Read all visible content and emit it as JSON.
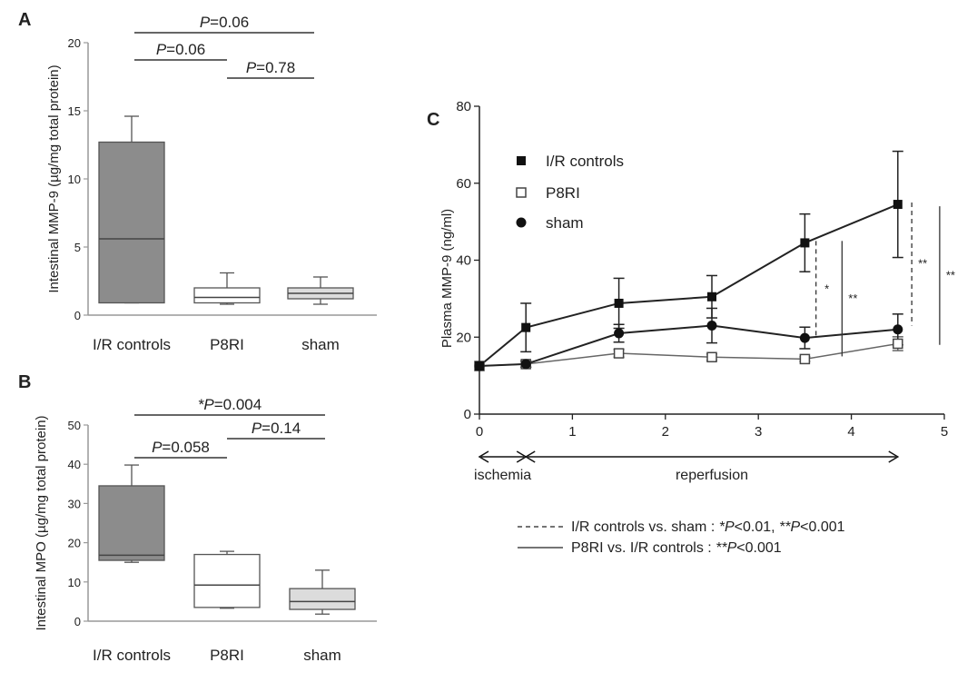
{
  "chart_data": [
    {
      "type": "box",
      "panel_label": "A",
      "ylabel": "Intestinal MMP-9 (µg/mg total protein)",
      "ylim": [
        0,
        20
      ],
      "yticks": [
        "0",
        "5",
        "10",
        "15",
        "20"
      ],
      "categories": [
        "I/R controls",
        "P8RI",
        "sham"
      ],
      "boxes": [
        {
          "min": 0.9,
          "q1": 0.9,
          "median": 5.6,
          "q3": 12.7,
          "max": 14.6,
          "fill": "#8c8c8c"
        },
        {
          "min": 0.8,
          "q1": 0.9,
          "median": 1.3,
          "q3": 2.0,
          "max": 3.1,
          "fill": "#ffffff"
        },
        {
          "min": 0.8,
          "q1": 1.2,
          "median": 1.6,
          "q3": 2.0,
          "max": 2.8,
          "fill": "#dcdcdc"
        }
      ],
      "comparisons": [
        {
          "from": 0,
          "to": 2,
          "p": "P",
          "text": "=0.06"
        },
        {
          "from": 0,
          "to": 1,
          "p": "P",
          "text": "=0.06"
        },
        {
          "from": 1,
          "to": 2,
          "p": "P",
          "text": "=0.78"
        }
      ]
    },
    {
      "type": "box",
      "panel_label": "B",
      "ylabel": "Intestinal MPO (µg/mg total protein)",
      "ylim": [
        0,
        50
      ],
      "yticks": [
        "0",
        "10",
        "20",
        "30",
        "40",
        "50"
      ],
      "categories": [
        "I/R controls",
        "P8RI",
        "sham"
      ],
      "boxes": [
        {
          "min": 15.0,
          "q1": 15.5,
          "median": 16.8,
          "q3": 34.5,
          "max": 39.8,
          "fill": "#8c8c8c"
        },
        {
          "min": 3.3,
          "q1": 3.5,
          "median": 9.2,
          "q3": 17.0,
          "max": 17.8,
          "fill": "#ffffff"
        },
        {
          "min": 1.8,
          "q1": 3.0,
          "median": 5.0,
          "q3": 8.3,
          "max": 13.0,
          "fill": "#dcdcdc"
        }
      ],
      "comparisons": [
        {
          "from": 0,
          "to": 2,
          "p": "*P",
          "text": "=0.004"
        },
        {
          "from": 0,
          "to": 1,
          "p": "P",
          "text": "=0.058"
        },
        {
          "from": 1,
          "to": 2,
          "p": "P",
          "text": "=0.14"
        }
      ]
    },
    {
      "type": "line",
      "panel_label": "C",
      "ylabel": "Plasma MMP-9 (ng/ml)",
      "xlim": [
        0,
        5
      ],
      "ylim": [
        0,
        80
      ],
      "xticks": [
        "0",
        "1",
        "2",
        "3",
        "4",
        "5"
      ],
      "yticks": [
        "0",
        "20",
        "40",
        "60",
        "80"
      ],
      "ytick_labels": [
        "0",
        "20",
        "40",
        "60",
        "80"
      ],
      "series": [
        {
          "name": "I/R controls",
          "marker": "filled-square",
          "color": "#222222",
          "x": [
            0,
            0.5,
            1.5,
            2.5,
            3.5,
            4.5
          ],
          "y": [
            12.5,
            22.5,
            28.8,
            30.5,
            44.5,
            54.5
          ],
          "err": [
            0,
            6.3,
            6.5,
            5.5,
            7.5,
            13.8
          ]
        },
        {
          "name": "P8RI",
          "marker": "open-square",
          "color": "#666666",
          "x": [
            0,
            0.5,
            1.5,
            2.5,
            3.5,
            4.5
          ],
          "y": [
            12.5,
            13.0,
            15.8,
            14.8,
            14.3,
            18.3
          ],
          "err": [
            0,
            0.8,
            1.0,
            0.8,
            0.6,
            1.8
          ]
        },
        {
          "name": "sham",
          "marker": "circle",
          "color": "#222222",
          "x": [
            0,
            0.5,
            1.5,
            2.5,
            3.5,
            4.5
          ],
          "y": [
            12.5,
            13.0,
            21.0,
            23.0,
            19.8,
            22.0
          ],
          "err": [
            0,
            0.8,
            2.3,
            4.5,
            2.8,
            4.0
          ]
        }
      ],
      "significance": [
        {
          "x": 3.62,
          "y1": 20,
          "y2": 45,
          "style": "dashed",
          "label": "*"
        },
        {
          "x": 3.9,
          "y1": 15,
          "y2": 45,
          "style": "solid",
          "label": "**"
        },
        {
          "x": 4.65,
          "y1": 23,
          "y2": 55,
          "style": "dashed",
          "label": "**"
        },
        {
          "x": 4.95,
          "y1": 18,
          "y2": 54,
          "style": "solid",
          "label": "**"
        }
      ],
      "phases": [
        {
          "label": "ischemia",
          "from": 0,
          "to": 0.5
        },
        {
          "label": "reperfusion",
          "from": 0.5,
          "to": 4.5
        }
      ],
      "footnotes": [
        {
          "style": "dashed",
          "lead": "I/R controls vs. sham : ",
          "p1": "*P",
          "v1": "<0.01, ",
          "p2": "**P",
          "v2": "<0.001"
        },
        {
          "style": "solid",
          "lead": "P8RI vs. I/R controls : ",
          "p1": "**P",
          "v1": "<0.001",
          "p2": "",
          "v2": ""
        }
      ]
    }
  ]
}
